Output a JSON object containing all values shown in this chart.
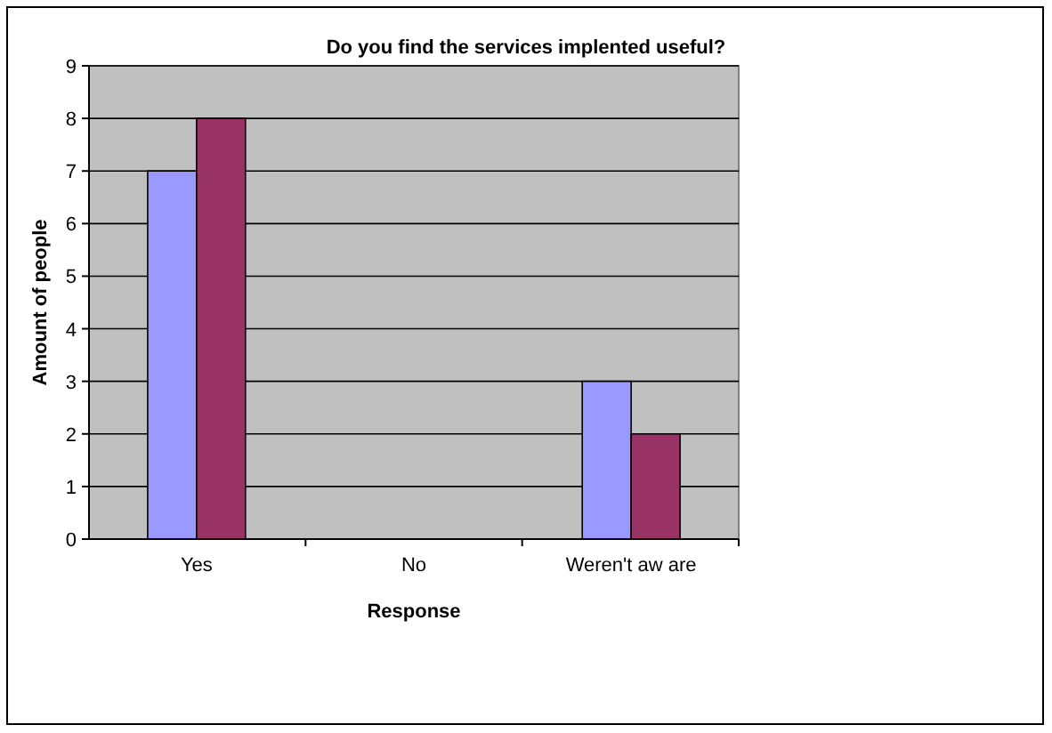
{
  "chart_data": {
    "type": "bar",
    "title": "Do you find the services implented useful?",
    "xlabel": "Response",
    "ylabel": "Amount of people",
    "categories": [
      "Yes",
      "No",
      "Weren't aw are"
    ],
    "series": [
      {
        "color": "#9999ff",
        "values": [
          7,
          0,
          3
        ]
      },
      {
        "color": "#993366",
        "values": [
          8,
          0,
          2
        ]
      }
    ],
    "ylim": [
      0,
      9
    ],
    "yticks": [
      0,
      1,
      2,
      3,
      4,
      5,
      6,
      7,
      8,
      9
    ],
    "grid": "y"
  }
}
